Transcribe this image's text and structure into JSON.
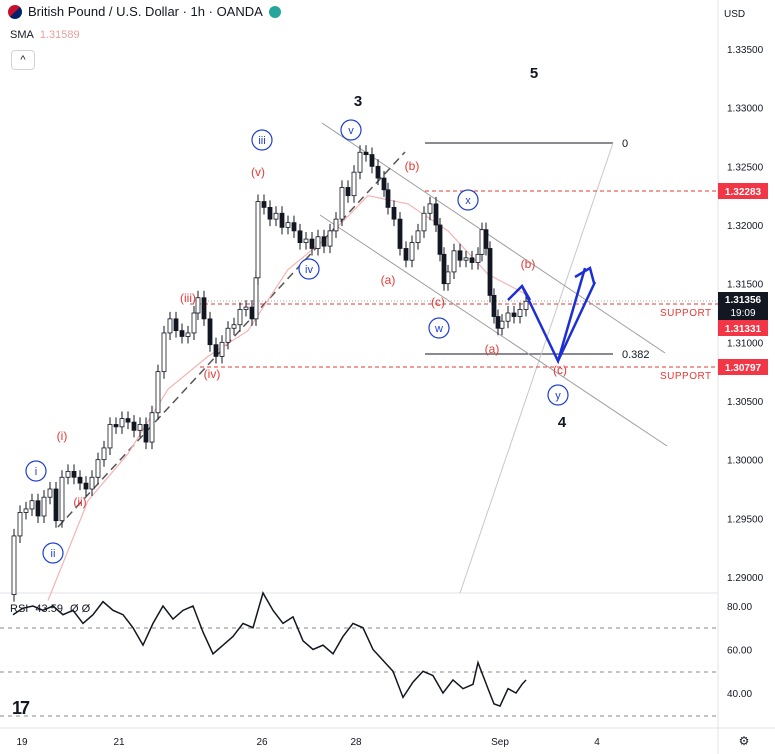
{
  "header": {
    "title": "British Pound / U.S. Dollar · 1h · OANDA",
    "currency": "USD"
  },
  "sma": {
    "label": "SMA",
    "value": "1.31589"
  },
  "collapse_label": "^",
  "rsi": {
    "label": "RSI",
    "value": "43.59",
    "icons": "Ø Ø"
  },
  "logo_text": "17",
  "price_axis": {
    "ticks": [
      "1.33500",
      "1.33000",
      "1.32500",
      "1.32000",
      "1.31500",
      "1.31000",
      "1.30500",
      "1.30000",
      "1.29500",
      "1.29000"
    ]
  },
  "rsi_axis": {
    "ticks": [
      "80.00",
      "60.00",
      "40.00"
    ]
  },
  "time_axis": {
    "ticks": [
      "19",
      "21",
      "26",
      "28",
      "Sep",
      "4"
    ]
  },
  "price_badges": {
    "current": "1.31356",
    "countdown": "19:09",
    "resistance": "1.32283",
    "support1": "1.31331",
    "support2": "1.30797"
  },
  "support_labels": [
    "SUPPORT",
    "SUPPORT"
  ],
  "fib": {
    "top": "0",
    "mid": "0.382"
  },
  "wave_labels": {
    "big": [
      "3",
      "5",
      "4"
    ],
    "circled_blue": [
      "i",
      "ii",
      "iii",
      "iv",
      "v",
      "w",
      "x",
      "y"
    ],
    "red": [
      "(i)",
      "(ii)",
      "(iii)",
      "(iv)",
      "(v)",
      "(a)",
      "(b)",
      "(c)",
      "(a)",
      "(b)",
      "(c)"
    ]
  },
  "colors": {
    "up": "#26a69a",
    "red_label": "#e53935",
    "blue_label": "#1e3fd1",
    "support_line": "#e53935",
    "badge_red": "#f23645",
    "badge_dark": "#131722",
    "sma": "#f4b4b4",
    "channel": "#9e9e9e",
    "blue_path": "#1c2fd6"
  },
  "chart_data": {
    "type": "line",
    "price_series": [
      [
        0,
        1.2885
      ],
      [
        6,
        1.2935
      ],
      [
        12,
        1.2955
      ],
      [
        18,
        1.2958
      ],
      [
        24,
        1.2965
      ],
      [
        30,
        1.2952
      ],
      [
        36,
        1.2968
      ],
      [
        42,
        1.2975
      ],
      [
        48,
        1.2948
      ],
      [
        54,
        1.2985
      ],
      [
        60,
        1.299
      ],
      [
        66,
        1.2985
      ],
      [
        72,
        1.298
      ],
      [
        78,
        1.2975
      ],
      [
        84,
        1.2985
      ],
      [
        90,
        1.3
      ],
      [
        96,
        1.301
      ],
      [
        102,
        1.303
      ],
      [
        108,
        1.3028
      ],
      [
        114,
        1.3035
      ],
      [
        120,
        1.3032
      ],
      [
        126,
        1.3025
      ],
      [
        132,
        1.303
      ],
      [
        138,
        1.3015
      ],
      [
        144,
        1.304
      ],
      [
        150,
        1.3075
      ],
      [
        156,
        1.3108
      ],
      [
        162,
        1.312
      ],
      [
        168,
        1.311
      ],
      [
        174,
        1.3105
      ],
      [
        180,
        1.3108
      ],
      [
        186,
        1.3125
      ],
      [
        190,
        1.3138
      ],
      [
        196,
        1.312
      ],
      [
        202,
        1.3098
      ],
      [
        208,
        1.3088
      ],
      [
        214,
        1.31
      ],
      [
        220,
        1.3112
      ],
      [
        226,
        1.3115
      ],
      [
        232,
        1.3128
      ],
      [
        238,
        1.313
      ],
      [
        244,
        1.312
      ],
      [
        248,
        1.3155
      ],
      [
        250,
        1.322
      ],
      [
        256,
        1.3215
      ],
      [
        262,
        1.3205
      ],
      [
        268,
        1.321
      ],
      [
        274,
        1.3198
      ],
      [
        280,
        1.3202
      ],
      [
        286,
        1.3195
      ],
      [
        292,
        1.3185
      ],
      [
        298,
        1.3188
      ],
      [
        304,
        1.318
      ],
      [
        310,
        1.319
      ],
      [
        316,
        1.3182
      ],
      [
        322,
        1.3195
      ],
      [
        328,
        1.3205
      ],
      [
        334,
        1.3232
      ],
      [
        340,
        1.3225
      ],
      [
        346,
        1.3245
      ],
      [
        352,
        1.3262
      ],
      [
        358,
        1.326
      ],
      [
        364,
        1.325
      ],
      [
        370,
        1.324
      ],
      [
        376,
        1.323
      ],
      [
        380,
        1.3215
      ],
      [
        386,
        1.3205
      ],
      [
        392,
        1.318
      ],
      [
        398,
        1.317
      ],
      [
        404,
        1.3185
      ],
      [
        410,
        1.3195
      ],
      [
        416,
        1.321
      ],
      [
        422,
        1.3218
      ],
      [
        428,
        1.32
      ],
      [
        432,
        1.3175
      ],
      [
        436,
        1.315
      ],
      [
        440,
        1.316
      ],
      [
        446,
        1.3178
      ],
      [
        452,
        1.317
      ],
      [
        458,
        1.3172
      ],
      [
        464,
        1.3168
      ],
      [
        470,
        1.3175
      ],
      [
        474,
        1.3196
      ],
      [
        478,
        1.318
      ],
      [
        482,
        1.314
      ],
      [
        486,
        1.3122
      ],
      [
        490,
        1.3112
      ],
      [
        494,
        1.3118
      ],
      [
        500,
        1.3125
      ],
      [
        506,
        1.3122
      ],
      [
        512,
        1.3128
      ],
      [
        518,
        1.3135
      ]
    ],
    "sma_series": [
      [
        40,
        1.288
      ],
      [
        80,
        1.2965
      ],
      [
        120,
        1.3005
      ],
      [
        160,
        1.306
      ],
      [
        200,
        1.3088
      ],
      [
        240,
        1.311
      ],
      [
        280,
        1.3162
      ],
      [
        320,
        1.319
      ],
      [
        360,
        1.3225
      ],
      [
        400,
        1.3218
      ],
      [
        440,
        1.3195
      ],
      [
        480,
        1.3158
      ],
      [
        520,
        1.314
      ]
    ],
    "rsi_series": [
      [
        5,
        76
      ],
      [
        15,
        79
      ],
      [
        25,
        80
      ],
      [
        35,
        78
      ],
      [
        45,
        80
      ],
      [
        55,
        76
      ],
      [
        65,
        78
      ],
      [
        75,
        72
      ],
      [
        85,
        76
      ],
      [
        95,
        82
      ],
      [
        105,
        78
      ],
      [
        115,
        76
      ],
      [
        125,
        70
      ],
      [
        135,
        62
      ],
      [
        145,
        72
      ],
      [
        155,
        80
      ],
      [
        165,
        74
      ],
      [
        175,
        78
      ],
      [
        185,
        80
      ],
      [
        195,
        68
      ],
      [
        205,
        58
      ],
      [
        215,
        62
      ],
      [
        225,
        66
      ],
      [
        235,
        72
      ],
      [
        245,
        70
      ],
      [
        255,
        86
      ],
      [
        265,
        78
      ],
      [
        275,
        72
      ],
      [
        285,
        75
      ],
      [
        295,
        64
      ],
      [
        305,
        60
      ],
      [
        315,
        62
      ],
      [
        325,
        58
      ],
      [
        335,
        66
      ],
      [
        345,
        72
      ],
      [
        355,
        70
      ],
      [
        365,
        60
      ],
      [
        375,
        55
      ],
      [
        385,
        50
      ],
      [
        395,
        38
      ],
      [
        405,
        45
      ],
      [
        415,
        50
      ],
      [
        425,
        48
      ],
      [
        435,
        40
      ],
      [
        445,
        46
      ],
      [
        455,
        42
      ],
      [
        465,
        44
      ],
      [
        470,
        54
      ],
      [
        475,
        48
      ],
      [
        480,
        42
      ],
      [
        486,
        35
      ],
      [
        492,
        34
      ],
      [
        500,
        42
      ],
      [
        508,
        40
      ],
      [
        514,
        44
      ],
      [
        518,
        46
      ]
    ],
    "price_range": [
      1.288,
      1.336
    ],
    "rsi_range": [
      20,
      90
    ],
    "grid": false
  }
}
